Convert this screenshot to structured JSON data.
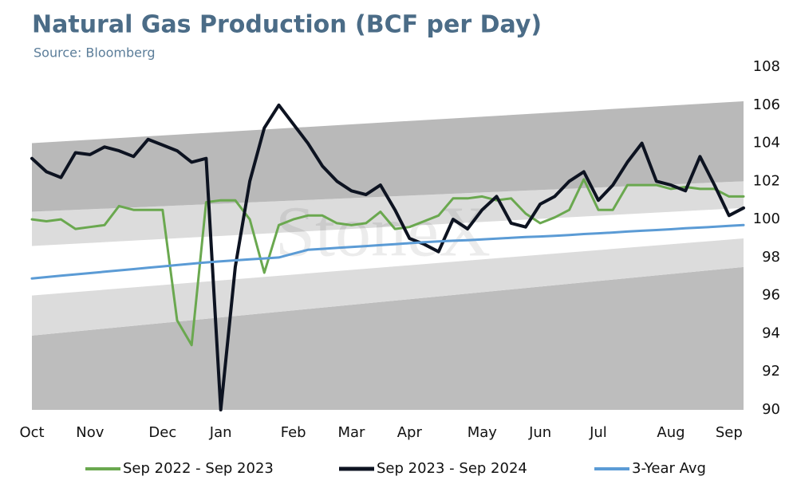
{
  "chart_data": {
    "type": "line",
    "title": "Natural Gas Production (BCF per Day)",
    "subtitle": "Source: Bloomberg",
    "watermark": "StoneX",
    "categories": [
      "Oct",
      null,
      null,
      null,
      "Nov",
      null,
      null,
      null,
      null,
      "Dec",
      null,
      null,
      null,
      "Jan",
      null,
      null,
      null,
      null,
      "Feb",
      null,
      null,
      null,
      "Mar",
      null,
      null,
      null,
      "Apr",
      null,
      null,
      null,
      null,
      "May",
      null,
      null,
      null,
      "Jun",
      null,
      null,
      null,
      "Jul",
      null,
      null,
      null,
      null,
      "Aug",
      null,
      null,
      null,
      "Sep",
      null
    ],
    "series": [
      {
        "name": "Sep 2022 - Sep 2023",
        "color": "#6aa84f",
        "width": 3,
        "values": [
          100.0,
          99.9,
          100.0,
          99.5,
          99.6,
          99.7,
          100.7,
          100.5,
          100.5,
          100.5,
          94.7,
          93.4,
          100.9,
          101.0,
          101.0,
          100.0,
          97.2,
          99.7,
          100.0,
          100.2,
          100.2,
          99.8,
          99.7,
          99.8,
          100.4,
          99.5,
          99.6,
          99.9,
          100.2,
          101.1,
          101.1,
          101.2,
          101.0,
          101.1,
          100.3,
          99.8,
          100.1,
          100.5,
          102.1,
          100.5,
          100.5,
          101.8,
          101.8,
          101.8,
          101.6,
          101.7,
          101.6,
          101.6,
          101.2,
          101.2
        ]
      },
      {
        "name": "Sep 2023 - Sep 2024",
        "color": "#0d1321",
        "width": 4,
        "values": [
          103.2,
          102.5,
          102.2,
          103.5,
          103.4,
          103.8,
          103.6,
          103.3,
          104.2,
          103.9,
          103.6,
          103.0,
          103.2,
          90.0,
          97.5,
          102.0,
          104.8,
          106.0,
          105.0,
          104.0,
          102.8,
          102.0,
          101.5,
          101.3,
          101.8,
          100.5,
          99.0,
          98.7,
          98.3,
          100.0,
          99.5,
          100.5,
          101.2,
          99.8,
          99.6,
          100.8,
          101.2,
          102.0,
          102.5,
          101.0,
          101.8,
          103.0,
          104.0,
          102.0,
          101.8,
          101.5,
          103.3,
          101.8,
          100.2,
          100.6
        ]
      },
      {
        "name": "3-Year Avg",
        "color": "#5b9bd5",
        "width": 3,
        "values": [
          96.9,
          96.97,
          97.04,
          97.11,
          97.18,
          97.25,
          97.32,
          97.39,
          97.46,
          97.53,
          97.6,
          97.67,
          97.74,
          97.8,
          97.85,
          97.9,
          97.95,
          98.0,
          98.2,
          98.4,
          98.45,
          98.5,
          98.55,
          98.6,
          98.65,
          98.7,
          98.75,
          98.8,
          98.84,
          98.88,
          98.91,
          98.95,
          98.99,
          99.03,
          99.07,
          99.1,
          99.14,
          99.18,
          99.23,
          99.27,
          99.31,
          99.36,
          99.4,
          99.44,
          99.48,
          99.53,
          99.57,
          99.61,
          99.66,
          99.7
        ]
      }
    ],
    "bands": [
      {
        "color": "#bdbdbd",
        "lower": [
          90,
          90
        ],
        "upper": [
          93.9,
          97.5
        ]
      },
      {
        "color": "#dcdcdc",
        "lower": [
          93.9,
          97.5
        ],
        "upper": [
          96.0,
          99.0
        ]
      },
      {
        "color": "#dcdcdc",
        "lower": [
          98.6,
          100.6
        ],
        "upper": [
          100.4,
          102.0
        ]
      },
      {
        "color": "#b9b9b9",
        "lower": [
          100.4,
          102.0
        ],
        "upper": [
          104.0,
          106.2
        ]
      }
    ],
    "ylim": [
      90,
      108
    ],
    "yticks": [
      90,
      92,
      94,
      96,
      98,
      100,
      102,
      104,
      106,
      108
    ],
    "grid": false,
    "legend": "bottom"
  }
}
